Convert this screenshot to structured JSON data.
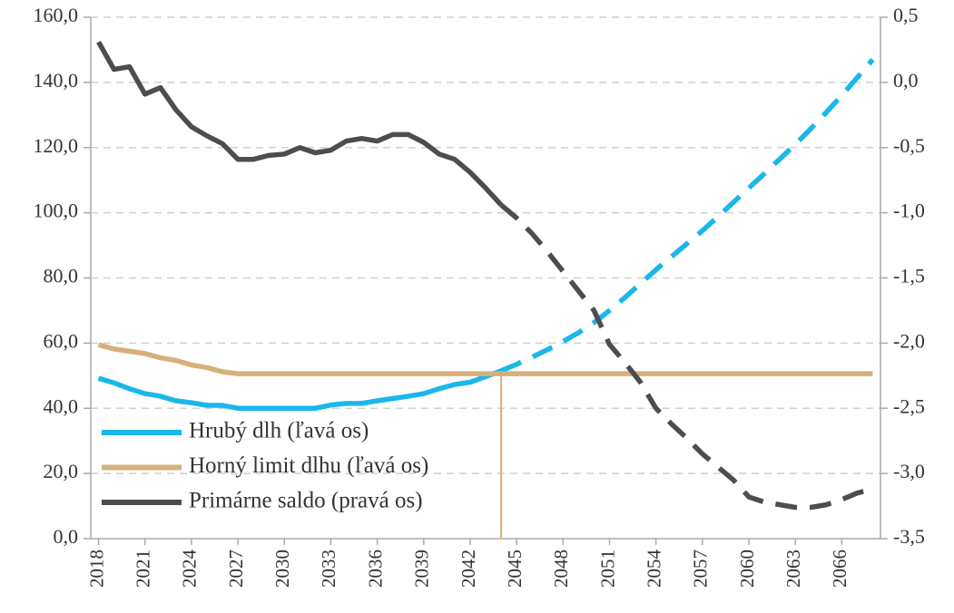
{
  "chart_data": {
    "type": "line",
    "x": [
      2018,
      2019,
      2020,
      2021,
      2022,
      2023,
      2024,
      2025,
      2026,
      2027,
      2028,
      2029,
      2030,
      2031,
      2032,
      2033,
      2034,
      2035,
      2036,
      2037,
      2038,
      2039,
      2040,
      2041,
      2042,
      2043,
      2044,
      2045,
      2046,
      2047,
      2048,
      2049,
      2050,
      2051,
      2052,
      2053,
      2054,
      2055,
      2056,
      2057,
      2058,
      2059,
      2060,
      2061,
      2062,
      2063,
      2064,
      2065,
      2066,
      2067,
      2068
    ],
    "xlim": [
      2017.5,
      2068.5
    ],
    "xticks": [
      2018,
      2021,
      2024,
      2027,
      2030,
      2033,
      2036,
      2039,
      2042,
      2045,
      2048,
      2051,
      2054,
      2057,
      2060,
      2063,
      2066
    ],
    "ylim": [
      0,
      160
    ],
    "yticks": [
      {
        "value": 0,
        "label": "0,0"
      },
      {
        "value": 20,
        "label": "20,0"
      },
      {
        "value": 40,
        "label": "40,0"
      },
      {
        "value": 60,
        "label": "60,0"
      },
      {
        "value": 80,
        "label": "80,0"
      },
      {
        "value": 100,
        "label": "100,0"
      },
      {
        "value": 120,
        "label": "120,0"
      },
      {
        "value": 140,
        "label": "140,0"
      },
      {
        "value": 160,
        "label": "160,0"
      }
    ],
    "y2lim": [
      -3.5,
      0.5
    ],
    "y2ticks": [
      {
        "value": -3.5,
        "label": "-3,5"
      },
      {
        "value": -3,
        "label": "-3,0"
      },
      {
        "value": -2.5,
        "label": "-2,5"
      },
      {
        "value": -2,
        "label": "-2,0"
      },
      {
        "value": -1.5,
        "label": "-1,5"
      },
      {
        "value": -1,
        "label": "-1,0"
      },
      {
        "value": -0.5,
        "label": "-0,5"
      },
      {
        "value": 0,
        "label": "0,0"
      },
      {
        "value": 0.5,
        "label": "0,5"
      }
    ],
    "grid": true,
    "legend": "lower left",
    "dashed_from": 2044,
    "marker_x": 2044,
    "series": [
      {
        "name": "Hrubý dlh (ľavá os)",
        "color": "#1ab7ea",
        "values": [
          49.2,
          47.8,
          46,
          44.5,
          43.7,
          42.3,
          41.7,
          40.9,
          40.9,
          40,
          40,
          40,
          40,
          40,
          40,
          41,
          41.5,
          41.5,
          42.3,
          43,
          43.7,
          44.5,
          46,
          47.3,
          48,
          49.7,
          51.5,
          53.5,
          55.7,
          58,
          60.5,
          63.2,
          66.3,
          70,
          74,
          78.3,
          82.5,
          86.5,
          90.5,
          94.5,
          98.8,
          103.2,
          107.6,
          112,
          116.5,
          121,
          125.8,
          130.8,
          136,
          141.5,
          147
        ]
      },
      {
        "name": "Horný limit dlhu (ľavá os)",
        "color": "#d5b07b",
        "values": [
          59.5,
          58.2,
          57.5,
          56.8,
          55.5,
          54.7,
          53.3,
          52.5,
          51.2,
          50.6,
          50.6,
          50.6,
          50.6,
          50.6,
          50.6,
          50.6,
          50.6,
          50.6,
          50.6,
          50.6,
          50.6,
          50.6,
          50.6,
          50.6,
          50.6,
          50.6,
          50.6,
          50.6,
          50.6,
          50.6,
          50.6,
          50.6,
          50.6,
          50.6,
          50.6,
          50.6,
          50.6,
          50.6,
          50.6,
          50.6,
          50.6,
          50.6,
          50.6,
          50.6,
          50.6,
          50.6,
          50.6,
          50.6,
          50.6,
          50.6,
          50.6
        ]
      },
      {
        "name": "Primárne saldo (pravá os)",
        "color": "#4d4d4d",
        "axis": "y2",
        "values": [
          0.31,
          0.1,
          0.12,
          -0.09,
          -0.04,
          -0.21,
          -0.34,
          -0.41,
          -0.47,
          -0.59,
          -0.59,
          -0.56,
          -0.55,
          -0.5,
          -0.54,
          -0.52,
          -0.45,
          -0.43,
          -0.45,
          -0.4,
          -0.4,
          -0.46,
          -0.55,
          -0.59,
          -0.69,
          -0.81,
          -0.94,
          -1.04,
          -1.16,
          -1.3,
          -1.45,
          -1.6,
          -1.75,
          -2.01,
          -2.15,
          -2.3,
          -2.5,
          -2.62,
          -2.73,
          -2.85,
          -2.95,
          -3.05,
          -3.18,
          -3.22,
          -3.24,
          -3.26,
          -3.26,
          -3.24,
          -3.2,
          -3.15,
          -3.12
        ]
      }
    ]
  }
}
